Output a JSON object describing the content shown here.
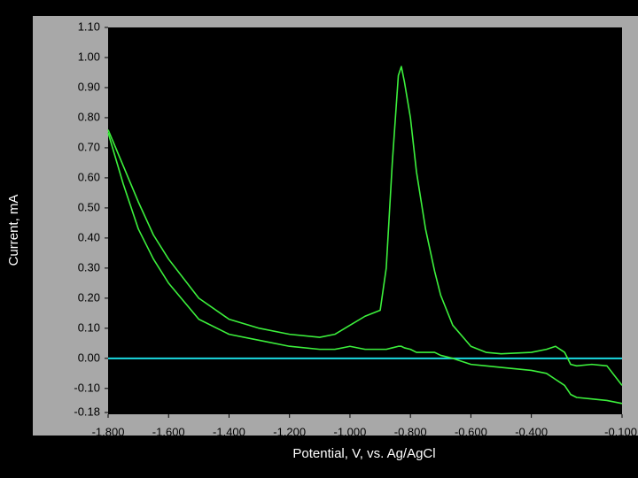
{
  "chart_data": {
    "type": "line",
    "xlabel": "Potential, V, vs. Ag/AgCl",
    "ylabel": "Current, mA",
    "xlim": [
      -1.8,
      -0.1
    ],
    "xticks": [
      {
        "value": -1.8,
        "label": "-1.800"
      },
      {
        "value": -1.6,
        "label": "-1.600"
      },
      {
        "value": -1.4,
        "label": "-1.400"
      },
      {
        "value": -1.2,
        "label": "-1.200"
      },
      {
        "value": -1.0,
        "label": "-1.000"
      },
      {
        "value": -0.8,
        "label": "-0.800"
      },
      {
        "value": -0.6,
        "label": "-0.600"
      },
      {
        "value": -0.4,
        "label": "-0.400"
      },
      {
        "value": -0.1,
        "label": "-0.100"
      }
    ],
    "ylim": [
      -0.18,
      1.1
    ],
    "yticks": [
      {
        "value": 1.1,
        "label": "1.10"
      },
      {
        "value": 1.0,
        "label": "1.00"
      },
      {
        "value": 0.9,
        "label": "0.90"
      },
      {
        "value": 0.8,
        "label": "0.80"
      },
      {
        "value": 0.7,
        "label": "0.70"
      },
      {
        "value": 0.6,
        "label": "0.60"
      },
      {
        "value": 0.5,
        "label": "0.50"
      },
      {
        "value": 0.4,
        "label": "0.40"
      },
      {
        "value": 0.3,
        "label": "0.30"
      },
      {
        "value": 0.2,
        "label": "0.20"
      },
      {
        "value": 0.1,
        "label": "0.10"
      },
      {
        "value": 0.0,
        "label": "0.00"
      },
      {
        "value": -0.1,
        "label": "-0.10"
      },
      {
        "value": -0.18,
        "label": "-0.18"
      }
    ],
    "zero_line_color": "#1ad8e0",
    "x": [
      -1.8,
      -1.75,
      -1.7,
      -1.65,
      -1.6,
      -1.5,
      -1.4,
      -1.3,
      -1.2,
      -1.1,
      -1.05,
      -1.0,
      -0.95,
      -0.9,
      -0.88,
      -0.86,
      -0.84,
      -0.83,
      -0.82,
      -0.8,
      -0.78,
      -0.75,
      -0.72,
      -0.7,
      -0.66,
      -0.6,
      -0.55,
      -0.5,
      -0.4,
      -0.35,
      -0.32,
      -0.29,
      -0.27,
      -0.25,
      -0.2,
      -0.15,
      -0.1
    ],
    "series": [
      {
        "color": "#3cf03c",
        "values": [
          0.76,
          0.64,
          0.52,
          0.41,
          0.33,
          0.2,
          0.13,
          0.1,
          0.08,
          0.07,
          0.08,
          0.11,
          0.14,
          0.16,
          0.3,
          0.65,
          0.94,
          0.97,
          0.92,
          0.8,
          0.62,
          0.43,
          0.29,
          0.21,
          0.11,
          0.04,
          0.02,
          0.015,
          0.02,
          0.03,
          0.04,
          0.02,
          -0.02,
          -0.025,
          -0.02,
          -0.025,
          -0.09
        ]
      },
      {
        "color": "#3cf03c",
        "values": [
          0.75,
          0.58,
          0.43,
          0.33,
          0.25,
          0.13,
          0.08,
          0.06,
          0.04,
          0.03,
          0.03,
          0.04,
          0.03,
          0.03,
          0.03,
          0.035,
          0.04,
          0.04,
          0.035,
          0.03,
          0.02,
          0.02,
          0.02,
          0.01,
          0.0,
          -0.02,
          -0.025,
          -0.03,
          -0.04,
          -0.05,
          -0.07,
          -0.09,
          -0.12,
          -0.13,
          -0.135,
          -0.14,
          -0.15
        ]
      }
    ]
  }
}
